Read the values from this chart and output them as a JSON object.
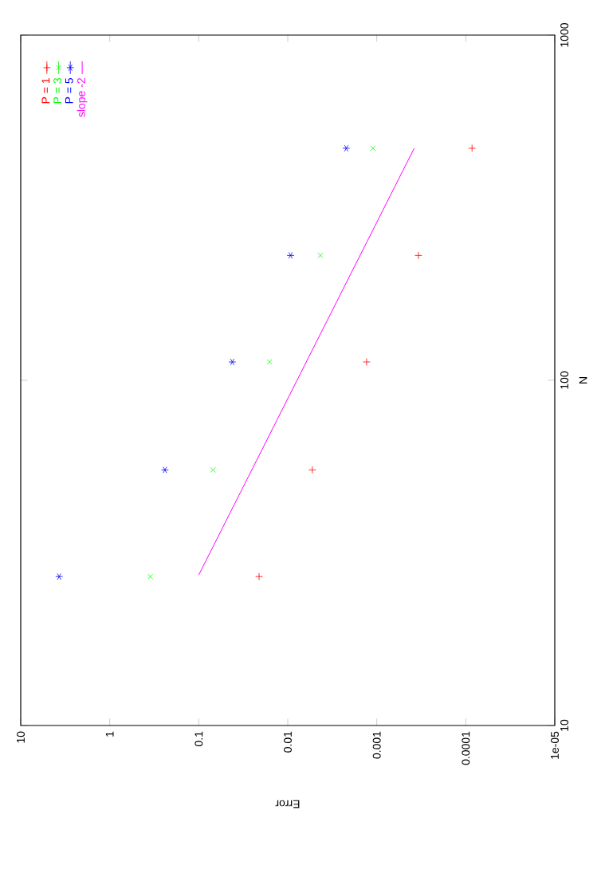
{
  "chart_data": {
    "type": "scatter",
    "xlabel": "Error",
    "ylabel": "N",
    "log": "xy",
    "xlim": [
      10,
      1e-05
    ],
    "ylim": [
      10,
      1000
    ],
    "xticks": [
      {
        "value": 10,
        "label": "10"
      },
      {
        "value": 1,
        "label": "1"
      },
      {
        "value": 0.1,
        "label": "0.1"
      },
      {
        "value": 0.01,
        "label": "0.01"
      },
      {
        "value": 0.001,
        "label": "0.001"
      },
      {
        "value": 0.0001,
        "label": "0.0001"
      },
      {
        "value": 1e-05,
        "label": "1e-05"
      }
    ],
    "yticks": [
      {
        "value": 10,
        "label": "10"
      },
      {
        "value": 100,
        "label": "100"
      },
      {
        "value": 1000,
        "label": "1000"
      }
    ],
    "legend": "top left",
    "series": [
      {
        "name": "P = 1",
        "color": "#ff0000",
        "marker": "plus",
        "x": [
          0.021,
          0.0053,
          0.0013,
          0.00034,
          8.5e-05
        ],
        "values": [
          27,
          55,
          113,
          230,
          470
        ]
      },
      {
        "name": "P = 3",
        "color": "#00ff00",
        "marker": "cross",
        "x": [
          0.35,
          0.069,
          0.016,
          0.0043,
          0.0011
        ],
        "values": [
          27,
          55,
          113,
          230,
          470
        ]
      },
      {
        "name": "P = 5",
        "color": "#0000ff",
        "x": [
          3.7,
          0.24,
          0.042,
          0.0093,
          0.0022
        ],
        "values": [
          27,
          55,
          113,
          230,
          470
        ]
      },
      {
        "name": "slope -2",
        "type": "line",
        "color": "#ff00ff",
        "marker": "none",
        "line_style": "solid",
        "x": [
          0.1,
          0.00038
        ],
        "values": [
          27.3,
          470
        ]
      }
    ]
  }
}
